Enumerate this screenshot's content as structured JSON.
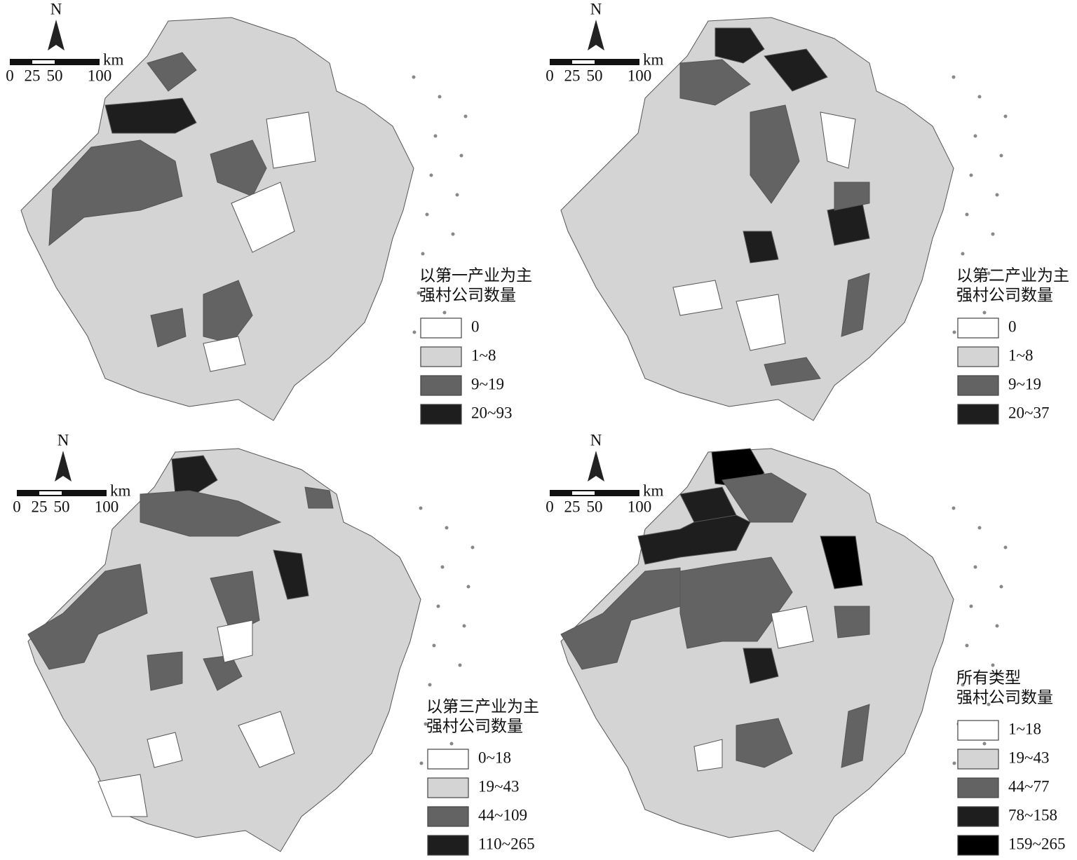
{
  "panels": [
    {
      "north": "N",
      "scale_labels": [
        "0",
        "25",
        "50",
        "100"
      ],
      "scale_unit": "km",
      "legend_title": [
        "以第一产业为主",
        "强村公司数量"
      ],
      "legend": [
        {
          "label": "0",
          "color": "#ffffff"
        },
        {
          "label": "1~8",
          "color": "#d4d4d4"
        },
        {
          "label": "9~19",
          "color": "#636363"
        },
        {
          "label": "20~93",
          "color": "#1e1e1e"
        }
      ]
    },
    {
      "north": "N",
      "scale_labels": [
        "0",
        "25",
        "50",
        "100"
      ],
      "scale_unit": "km",
      "legend_title": [
        "以第二产业为主",
        "强村公司数量"
      ],
      "legend": [
        {
          "label": "0",
          "color": "#ffffff"
        },
        {
          "label": "1~8",
          "color": "#d4d4d4"
        },
        {
          "label": "9~19",
          "color": "#636363"
        },
        {
          "label": "20~37",
          "color": "#1e1e1e"
        }
      ]
    },
    {
      "north": "N",
      "scale_labels": [
        "0",
        "25",
        "50",
        "100"
      ],
      "scale_unit": "km",
      "legend_title": [
        "以第三产业为主",
        "强村公司数量"
      ],
      "legend": [
        {
          "label": "0~18",
          "color": "#ffffff"
        },
        {
          "label": "19~43",
          "color": "#d4d4d4"
        },
        {
          "label": "44~109",
          "color": "#636363"
        },
        {
          "label": "110~265",
          "color": "#1e1e1e"
        }
      ]
    },
    {
      "north": "N",
      "scale_labels": [
        "0",
        "25",
        "50",
        "100"
      ],
      "scale_unit": "km",
      "legend_title": [
        "所有类型",
        "强村公司数量"
      ],
      "legend": [
        {
          "label": "1~18",
          "color": "#ffffff"
        },
        {
          "label": "19~43",
          "color": "#d4d4d4"
        },
        {
          "label": "44~77",
          "color": "#636363"
        },
        {
          "label": "78~158",
          "color": "#1e1e1e"
        },
        {
          "label": "159~265",
          "color": "#000000"
        }
      ]
    }
  ]
}
